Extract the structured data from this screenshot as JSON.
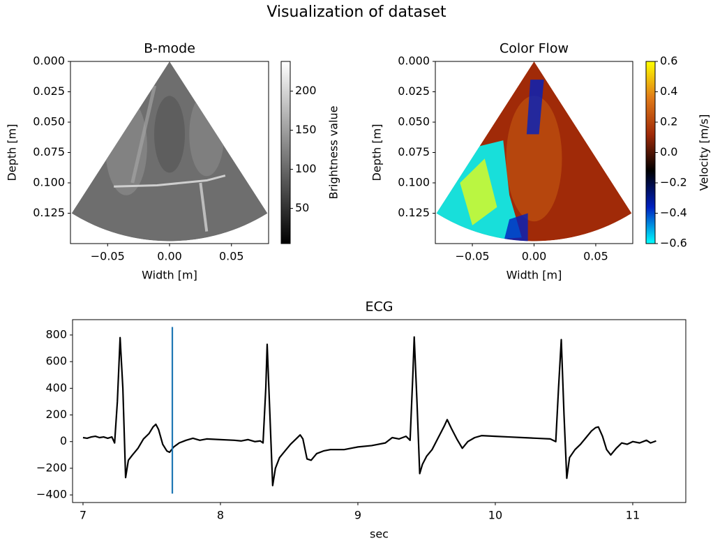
{
  "title": "Visualization of dataset",
  "chart_data": [
    {
      "type": "image",
      "title": "B-mode",
      "x_label": "Width [m]",
      "y_label": "Depth [m]",
      "xlim": [
        -0.08,
        0.08
      ],
      "ylim": [
        0.15,
        0
      ],
      "xticks": [
        {
          "value": -0.05,
          "label": "−0.05"
        },
        {
          "value": 0,
          "label": "0.00"
        },
        {
          "value": 0.05,
          "label": "0.05"
        }
      ],
      "yticks": [
        {
          "value": 0,
          "label": "0.000"
        },
        {
          "value": 0.025,
          "label": "0.025"
        },
        {
          "value": 0.05,
          "label": "0.050"
        },
        {
          "value": 0.075,
          "label": "0.075"
        },
        {
          "value": 0.1,
          "label": "0.100"
        },
        {
          "value": 0.125,
          "label": "0.125"
        }
      ],
      "colorbar": {
        "label": "Brightness value",
        "clim": [
          5,
          238
        ],
        "ticks": [
          50,
          100,
          150,
          200
        ],
        "colormap": [
          "#000000",
          "#ffffff"
        ]
      }
    },
    {
      "type": "image",
      "title": "Color Flow",
      "x_label": "Width [m]",
      "y_label": "Depth [m]",
      "xlim": [
        -0.08,
        0.08
      ],
      "ylim": [
        0.15,
        0
      ],
      "xticks": [
        {
          "value": -0.05,
          "label": "−0.05"
        },
        {
          "value": 0,
          "label": "0.00"
        },
        {
          "value": 0.05,
          "label": "0.05"
        }
      ],
      "yticks": [
        {
          "value": 0,
          "label": "0.000"
        },
        {
          "value": 0.025,
          "label": "0.025"
        },
        {
          "value": 0.05,
          "label": "0.050"
        },
        {
          "value": 0.075,
          "label": "0.075"
        },
        {
          "value": 0.1,
          "label": "0.100"
        },
        {
          "value": 0.125,
          "label": "0.125"
        }
      ],
      "colorbar": {
        "label": "Velocity [m/s]",
        "clim": [
          -0.6,
          0.6
        ],
        "ticks": [
          {
            "value": -0.6,
            "label": "−0.6"
          },
          {
            "value": -0.4,
            "label": "−0.4"
          },
          {
            "value": -0.2,
            "label": "−0.2"
          },
          {
            "value": 0,
            "label": "0.0"
          },
          {
            "value": 0.2,
            "label": "0.2"
          },
          {
            "value": 0.4,
            "label": "0.4"
          },
          {
            "value": 0.6,
            "label": "0.6"
          }
        ],
        "colormap": [
          "#00ffff",
          "#0020c0",
          "#000000",
          "#a02a08",
          "#e07a18",
          "#ffff00"
        ]
      }
    },
    {
      "type": "line",
      "title": "ECG",
      "x_label": "sec",
      "xlim": [
        6.924,
        11.386
      ],
      "ylim": [
        -457,
        915
      ],
      "xticks": [
        7,
        8,
        9,
        10,
        11
      ],
      "yticks": [
        {
          "value": -400,
          "label": "−400"
        },
        {
          "value": -200,
          "label": "−200"
        },
        0,
        200,
        400,
        600,
        800
      ],
      "series": [
        {
          "color": "#000000",
          "x": [
            7.0,
            7.03,
            7.06,
            7.09,
            7.12,
            7.15,
            7.18,
            7.21,
            7.23,
            7.25,
            7.27,
            7.29,
            7.31,
            7.33,
            7.36,
            7.4,
            7.44,
            7.48,
            7.51,
            7.53,
            7.55,
            7.58,
            7.61,
            7.63,
            7.66,
            7.7,
            7.75,
            7.8,
            7.85,
            7.9,
            8.0,
            8.1,
            8.15,
            8.2,
            8.25,
            8.29,
            8.31,
            8.33,
            8.34,
            8.36,
            8.38,
            8.4,
            8.43,
            8.47,
            8.51,
            8.55,
            8.58,
            8.6,
            8.63,
            8.66,
            8.7,
            8.75,
            8.8,
            8.9,
            9.0,
            9.1,
            9.2,
            9.25,
            9.3,
            9.35,
            9.38,
            9.4,
            9.41,
            9.43,
            9.45,
            9.47,
            9.5,
            9.54,
            9.58,
            9.61,
            9.63,
            9.65,
            9.68,
            9.72,
            9.76,
            9.8,
            9.85,
            9.9,
            10.0,
            10.1,
            10.2,
            10.3,
            10.4,
            10.44,
            10.46,
            10.48,
            10.5,
            10.52,
            10.54,
            10.58,
            10.62,
            10.66,
            10.7,
            10.73,
            10.75,
            10.78,
            10.81,
            10.84,
            10.88,
            10.92,
            10.96,
            11.0,
            11.05,
            11.1,
            11.13,
            11.17
          ],
          "values": [
            30,
            25,
            35,
            40,
            30,
            35,
            25,
            35,
            -10,
            300,
            780,
            400,
            -270,
            -140,
            -100,
            -50,
            20,
            60,
            110,
            130,
            90,
            -20,
            -70,
            -80,
            -40,
            -10,
            10,
            25,
            10,
            20,
            15,
            10,
            5,
            15,
            0,
            5,
            -10,
            400,
            730,
            200,
            -330,
            -200,
            -120,
            -70,
            -20,
            20,
            50,
            20,
            -130,
            -140,
            -90,
            -70,
            -60,
            -60,
            -40,
            -30,
            -10,
            30,
            20,
            40,
            10,
            500,
            785,
            300,
            -240,
            -170,
            -110,
            -60,
            20,
            80,
            120,
            165,
            100,
            20,
            -50,
            0,
            30,
            45,
            40,
            35,
            30,
            25,
            20,
            0,
            400,
            765,
            200,
            -275,
            -120,
            -60,
            -20,
            30,
            80,
            105,
            110,
            40,
            -60,
            -100,
            -50,
            -10,
            -20,
            0,
            -10,
            10,
            -10,
            5
          ]
        },
        {
          "color": "#1f77b4",
          "x": [
            7.65,
            7.65
          ],
          "values": [
            -390,
            860
          ]
        }
      ]
    }
  ]
}
